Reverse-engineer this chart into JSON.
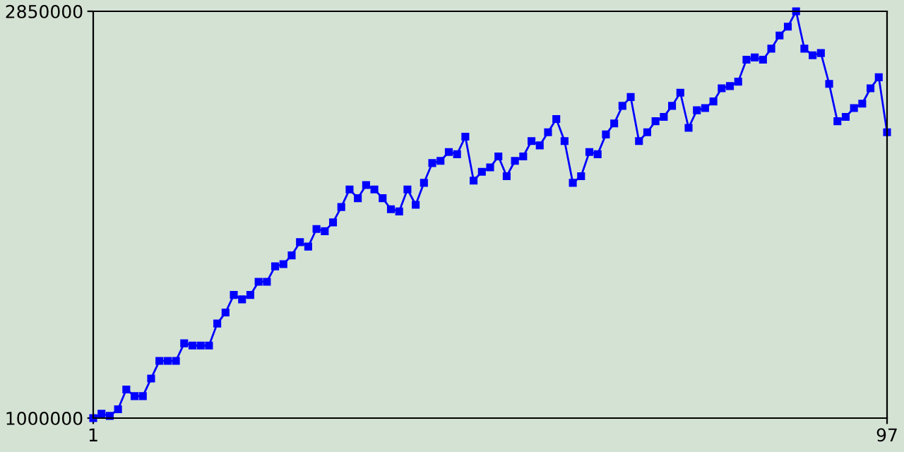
{
  "chart_data": {
    "type": "line",
    "x": [
      1,
      2,
      3,
      4,
      5,
      6,
      7,
      8,
      9,
      10,
      11,
      12,
      13,
      14,
      15,
      16,
      17,
      18,
      19,
      20,
      21,
      22,
      23,
      24,
      25,
      26,
      27,
      28,
      29,
      30,
      31,
      32,
      33,
      34,
      35,
      36,
      37,
      38,
      39,
      40,
      41,
      42,
      43,
      44,
      45,
      46,
      47,
      48,
      49,
      50,
      51,
      52,
      53,
      54,
      55,
      56,
      57,
      58,
      59,
      60,
      61,
      62,
      63,
      64,
      65,
      66,
      67,
      68,
      69,
      70,
      71,
      72,
      73,
      74,
      75,
      76,
      77,
      78,
      79,
      80,
      81,
      82,
      83,
      84,
      85,
      86,
      87,
      88,
      89,
      90,
      91,
      92,
      93,
      94,
      95,
      96,
      97
    ],
    "series": [
      {
        "color": "#0000ff",
        "values": [
          1000000,
          1020000,
          1010000,
          1040000,
          1130000,
          1100000,
          1100000,
          1180000,
          1260000,
          1260000,
          1260000,
          1340000,
          1330000,
          1330000,
          1330000,
          1430000,
          1480000,
          1560000,
          1540000,
          1560000,
          1620000,
          1620000,
          1690000,
          1700000,
          1740000,
          1800000,
          1780000,
          1860000,
          1850000,
          1890000,
          1960000,
          2040000,
          2000000,
          2060000,
          2040000,
          2000000,
          1950000,
          1940000,
          2040000,
          1970000,
          2070000,
          2160000,
          2170000,
          2210000,
          2200000,
          2280000,
          2080000,
          2120000,
          2140000,
          2190000,
          2100000,
          2170000,
          2190000,
          2260000,
          2240000,
          2300000,
          2360000,
          2260000,
          2070000,
          2100000,
          2210000,
          2200000,
          2290000,
          2340000,
          2420000,
          2460000,
          2260000,
          2300000,
          2350000,
          2370000,
          2420000,
          2480000,
          2320000,
          2400000,
          2410000,
          2440000,
          2500000,
          2510000,
          2530000,
          2630000,
          2640000,
          2630000,
          2680000,
          2740000,
          2780000,
          2850000,
          2680000,
          2650000,
          2660000,
          2520000,
          2350000,
          2370000,
          2410000,
          2430000,
          2500000,
          2550000,
          2300000
        ]
      }
    ],
    "xlim": [
      1,
      97
    ],
    "ylim": [
      1000000,
      2850000
    ],
    "xticks": [
      1,
      97
    ],
    "yticks": [
      1000000,
      2850000
    ],
    "marker": "square",
    "line_style": "solid"
  }
}
